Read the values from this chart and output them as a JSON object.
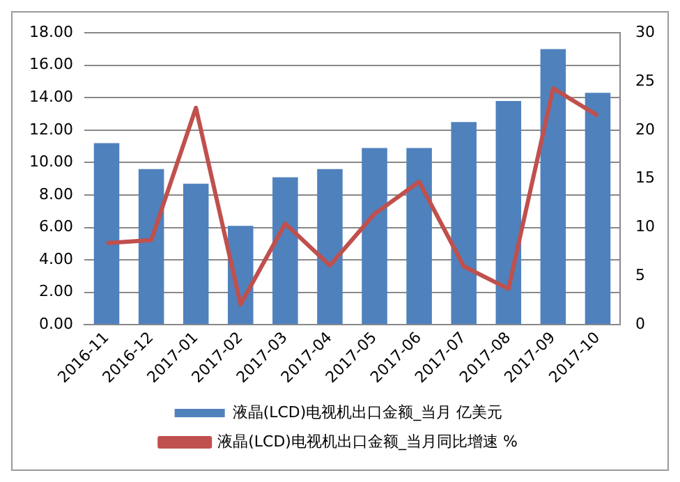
{
  "chart_data": {
    "type": "bar",
    "categories": [
      "2016-11",
      "2016-12",
      "2017-01",
      "2017-02",
      "2017-03",
      "2017-04",
      "2017-05",
      "2017-06",
      "2017-07",
      "2017-08",
      "2017-09",
      "2017-10"
    ],
    "series": [
      {
        "name": "液晶(LCD)电视机出口金额_当月 亿美元",
        "color": "#4f81bd",
        "values": [
          11.2,
          9.6,
          8.7,
          6.1,
          9.1,
          9.6,
          10.9,
          10.9,
          12.5,
          13.8,
          17.0,
          14.3
        ]
      },
      {
        "name": "液晶(LCD)电视机出口金额_当月同比增速 %",
        "type": "line",
        "axis": "y2",
        "color": "#c0504d",
        "values": [
          8.4,
          8.7,
          22.3,
          2.1,
          10.4,
          6.1,
          11.4,
          14.7,
          6.0,
          3.7,
          24.3,
          21.5
        ]
      }
    ],
    "ylim": [
      0,
      18
    ],
    "yticks": [
      {
        "value": 0,
        "label": "0.00"
      },
      {
        "value": 2,
        "label": "2.00"
      },
      {
        "value": 4,
        "label": "4.00"
      },
      {
        "value": 6,
        "label": "6.00"
      },
      {
        "value": 8,
        "label": "8.00"
      },
      {
        "value": 10,
        "label": "10.00"
      },
      {
        "value": 12,
        "label": "12.00"
      },
      {
        "value": 14,
        "label": "14.00"
      },
      {
        "value": 16,
        "label": "16.00"
      },
      {
        "value": 18,
        "label": "18.00"
      }
    ],
    "y2lim": [
      0,
      30
    ],
    "y2ticks": [
      0,
      5,
      10,
      15,
      20,
      25,
      30
    ],
    "grid": "y",
    "legend": "bottom",
    "marker": "none",
    "line_style": "solid"
  }
}
